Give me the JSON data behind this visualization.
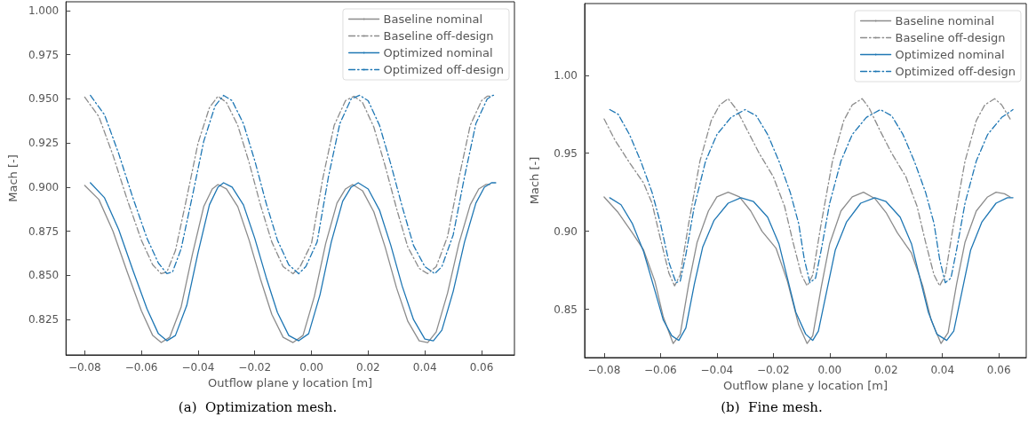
{
  "chart_data": [
    {
      "type": "line",
      "title": "(a)  Optimization mesh.",
      "xlabel": "Outflow plane y location [m]",
      "ylabel": "Mach [-]",
      "xlim": [
        -0.0866,
        0.0716
      ],
      "ylim": [
        0.805,
        1.005
      ],
      "xticks": [
        {
          "value": -0.08,
          "label": "−0.08"
        },
        {
          "value": -0.06,
          "label": "−0.06"
        },
        {
          "value": -0.04,
          "label": "−0.04"
        },
        {
          "value": -0.02,
          "label": "−0.02"
        },
        {
          "value": 0,
          "label": "0.00"
        },
        {
          "value": 0.02,
          "label": "0.02"
        },
        {
          "value": 0.04,
          "label": "0.04"
        },
        {
          "value": 0.06,
          "label": "0.06"
        }
      ],
      "yticks": [
        {
          "value": 0.825,
          "label": "0.825"
        },
        {
          "value": 0.85,
          "label": "0.850"
        },
        {
          "value": 0.875,
          "label": "0.875"
        },
        {
          "value": 0.9,
          "label": "0.900"
        },
        {
          "value": 0.925,
          "label": "0.925"
        },
        {
          "value": 0.95,
          "label": "0.950"
        },
        {
          "value": 0.975,
          "label": "0.975"
        },
        {
          "value": 1,
          "label": "1.000"
        }
      ],
      "grid": false,
      "legend": "top right",
      "marker": "none",
      "series": [
        {
          "name": "Baseline nominal",
          "color": "#8c8c8c",
          "line_style": "solid",
          "x": [
            -0.08,
            -0.075,
            -0.07,
            -0.065,
            -0.06,
            -0.056,
            -0.053,
            -0.05,
            -0.046,
            -0.042,
            -0.038,
            -0.035,
            -0.033,
            -0.03,
            -0.026,
            -0.022,
            -0.018,
            -0.014,
            -0.01,
            -0.0065,
            -0.003,
            0.001,
            0.005,
            0.009,
            0.012,
            0.0145,
            0.018,
            0.022,
            0.026,
            0.03,
            0.034,
            0.038,
            0.041,
            0.044,
            0.048,
            0.052,
            0.056,
            0.059,
            0.0615,
            0.063
          ],
          "values": [
            0.901,
            0.893,
            0.875,
            0.852,
            0.83,
            0.816,
            0.812,
            0.815,
            0.832,
            0.862,
            0.889,
            0.899,
            0.9015,
            0.899,
            0.889,
            0.87,
            0.848,
            0.828,
            0.815,
            0.812,
            0.816,
            0.838,
            0.868,
            0.891,
            0.899,
            0.9015,
            0.898,
            0.886,
            0.866,
            0.843,
            0.824,
            0.813,
            0.812,
            0.818,
            0.84,
            0.868,
            0.89,
            0.899,
            0.9015,
            0.9015
          ]
        },
        {
          "name": "Baseline off-design",
          "color": "#8c8c8c",
          "line_style": "dashdot",
          "x": [
            -0.08,
            -0.075,
            -0.07,
            -0.065,
            -0.06,
            -0.056,
            -0.053,
            -0.051,
            -0.048,
            -0.044,
            -0.04,
            -0.036,
            -0.033,
            -0.03,
            -0.026,
            -0.022,
            -0.018,
            -0.014,
            -0.01,
            -0.0065,
            -0.004,
            0,
            0.004,
            0.008,
            0.012,
            0.015,
            0.018,
            0.022,
            0.026,
            0.03,
            0.034,
            0.038,
            0.041,
            0.044,
            0.048,
            0.052,
            0.056,
            0.06,
            0.062,
            0.0635
          ],
          "values": [
            0.951,
            0.94,
            0.918,
            0.893,
            0.87,
            0.856,
            0.851,
            0.852,
            0.864,
            0.894,
            0.925,
            0.945,
            0.9515,
            0.948,
            0.935,
            0.914,
            0.89,
            0.869,
            0.855,
            0.851,
            0.855,
            0.868,
            0.905,
            0.935,
            0.949,
            0.9515,
            0.948,
            0.934,
            0.912,
            0.888,
            0.866,
            0.854,
            0.851,
            0.855,
            0.872,
            0.905,
            0.935,
            0.949,
            0.9515,
            0.9515
          ]
        },
        {
          "name": "Optimized nominal",
          "color": "#1f77b4",
          "line_style": "solid",
          "x": [
            -0.078,
            -0.073,
            -0.068,
            -0.063,
            -0.058,
            -0.054,
            -0.051,
            -0.048,
            -0.044,
            -0.04,
            -0.036,
            -0.033,
            -0.031,
            -0.028,
            -0.024,
            -0.02,
            -0.016,
            -0.012,
            -0.008,
            -0.0045,
            -0.001,
            0.003,
            0.007,
            0.011,
            0.014,
            0.0165,
            0.02,
            0.024,
            0.028,
            0.032,
            0.036,
            0.04,
            0.043,
            0.046,
            0.05,
            0.054,
            0.058,
            0.061,
            0.0635,
            0.065
          ],
          "values": [
            0.9025,
            0.894,
            0.876,
            0.853,
            0.831,
            0.817,
            0.813,
            0.816,
            0.833,
            0.863,
            0.89,
            0.9,
            0.9025,
            0.9,
            0.89,
            0.871,
            0.849,
            0.829,
            0.816,
            0.813,
            0.817,
            0.839,
            0.869,
            0.892,
            0.9,
            0.9025,
            0.899,
            0.887,
            0.867,
            0.844,
            0.825,
            0.814,
            0.813,
            0.819,
            0.841,
            0.869,
            0.891,
            0.9,
            0.9025,
            0.9025
          ]
        },
        {
          "name": "Optimized off-design",
          "color": "#1f77b4",
          "line_style": "dashdot",
          "x": [
            -0.078,
            -0.073,
            -0.068,
            -0.063,
            -0.058,
            -0.054,
            -0.051,
            -0.049,
            -0.046,
            -0.042,
            -0.038,
            -0.034,
            -0.031,
            -0.028,
            -0.024,
            -0.02,
            -0.016,
            -0.012,
            -0.008,
            -0.0045,
            -0.002,
            0.002,
            0.006,
            0.01,
            0.014,
            0.017,
            0.02,
            0.024,
            0.028,
            0.032,
            0.036,
            0.04,
            0.0435,
            0.046,
            0.05,
            0.054,
            0.058,
            0.062,
            0.064,
            0.065
          ],
          "values": [
            0.952,
            0.941,
            0.919,
            0.894,
            0.871,
            0.857,
            0.851,
            0.852,
            0.865,
            0.895,
            0.926,
            0.946,
            0.952,
            0.949,
            0.936,
            0.915,
            0.891,
            0.87,
            0.856,
            0.851,
            0.855,
            0.869,
            0.906,
            0.936,
            0.95,
            0.952,
            0.949,
            0.935,
            0.913,
            0.889,
            0.867,
            0.855,
            0.851,
            0.855,
            0.873,
            0.906,
            0.936,
            0.95,
            0.952,
            0.952
          ]
        }
      ]
    },
    {
      "type": "line",
      "title": "(b)  Fine mesh.",
      "xlabel": "Outflow plane y location [m]",
      "ylabel": "Mach [-]",
      "xlim": [
        -0.0869,
        0.0697
      ],
      "ylim": [
        0.819,
        1.046
      ],
      "xticks": [
        {
          "value": -0.08,
          "label": "−0.08"
        },
        {
          "value": -0.06,
          "label": "−0.06"
        },
        {
          "value": -0.04,
          "label": "−0.04"
        },
        {
          "value": -0.02,
          "label": "−0.02"
        },
        {
          "value": 0,
          "label": "0.00"
        },
        {
          "value": 0.02,
          "label": "0.02"
        },
        {
          "value": 0.04,
          "label": "0.04"
        },
        {
          "value": 0.06,
          "label": "0.06"
        }
      ],
      "yticks": [
        {
          "value": 0.85,
          "label": "0.85"
        },
        {
          "value": 0.9,
          "label": "0.90"
        },
        {
          "value": 0.95,
          "label": "0.95"
        },
        {
          "value": 1,
          "label": "1.00"
        }
      ],
      "grid": false,
      "legend": "top right",
      "marker": "none",
      "series": [
        {
          "name": "Baseline nominal",
          "color": "#8c8c8c",
          "line_style": "solid",
          "x": [
            -0.08,
            -0.075,
            -0.07,
            -0.066,
            -0.062,
            -0.059,
            -0.0555,
            -0.053,
            -0.05,
            -0.047,
            -0.043,
            -0.04,
            -0.036,
            -0.032,
            -0.028,
            -0.024,
            -0.019,
            -0.015,
            -0.011,
            -0.008,
            -0.006,
            -0.003,
            0,
            0.004,
            0.008,
            0.012,
            0.016,
            0.02,
            0.024,
            0.029,
            0.033,
            0.036,
            0.0395,
            0.042,
            0.045,
            0.048,
            0.052,
            0.056,
            0.059,
            0.062,
            0.064
          ],
          "values": [
            0.922,
            0.912,
            0.899,
            0.888,
            0.868,
            0.845,
            0.828,
            0.834,
            0.866,
            0.893,
            0.913,
            0.922,
            0.925,
            0.922,
            0.913,
            0.9,
            0.889,
            0.868,
            0.84,
            0.828,
            0.833,
            0.864,
            0.892,
            0.913,
            0.922,
            0.925,
            0.921,
            0.912,
            0.899,
            0.886,
            0.865,
            0.843,
            0.828,
            0.835,
            0.866,
            0.893,
            0.913,
            0.922,
            0.925,
            0.924,
            0.922
          ]
        },
        {
          "name": "Baseline off-design",
          "color": "#8c8c8c",
          "line_style": "dashdot",
          "x": [
            -0.08,
            -0.076,
            -0.071,
            -0.066,
            -0.063,
            -0.06,
            -0.057,
            -0.055,
            -0.053,
            -0.05,
            -0.046,
            -0.042,
            -0.039,
            -0.036,
            -0.033,
            -0.029,
            -0.025,
            -0.02,
            -0.016,
            -0.013,
            -0.01,
            -0.008,
            -0.006,
            -0.003,
            0.001,
            0.005,
            0.008,
            0.0115,
            0.014,
            0.018,
            0.022,
            0.027,
            0.031,
            0.034,
            0.037,
            0.039,
            0.041,
            0.044,
            0.048,
            0.052,
            0.055,
            0.0585,
            0.061,
            0.064
          ],
          "values": [
            0.972,
            0.958,
            0.944,
            0.931,
            0.918,
            0.895,
            0.873,
            0.865,
            0.872,
            0.905,
            0.945,
            0.971,
            0.981,
            0.985,
            0.978,
            0.964,
            0.95,
            0.935,
            0.916,
            0.893,
            0.872,
            0.865,
            0.872,
            0.905,
            0.945,
            0.971,
            0.981,
            0.985,
            0.979,
            0.964,
            0.95,
            0.935,
            0.916,
            0.893,
            0.872,
            0.865,
            0.872,
            0.905,
            0.945,
            0.971,
            0.981,
            0.985,
            0.981,
            0.972
          ]
        },
        {
          "name": "Optimized nominal",
          "color": "#1f77b4",
          "line_style": "solid",
          "x": [
            -0.078,
            -0.074,
            -0.07,
            -0.066,
            -0.062,
            -0.059,
            -0.056,
            -0.0535,
            -0.051,
            -0.048,
            -0.045,
            -0.041,
            -0.036,
            -0.0315,
            -0.027,
            -0.022,
            -0.018,
            -0.015,
            -0.012,
            -0.0085,
            -0.006,
            -0.004,
            -0.001,
            0.002,
            0.006,
            0.011,
            0.016,
            0.02,
            0.025,
            0.029,
            0.032,
            0.035,
            0.038,
            0.0415,
            0.044,
            0.047,
            0.05,
            0.054,
            0.059,
            0.063,
            0.065
          ],
          "values": [
            0.9215,
            0.917,
            0.905,
            0.887,
            0.862,
            0.843,
            0.833,
            0.83,
            0.838,
            0.866,
            0.89,
            0.907,
            0.918,
            0.9215,
            0.919,
            0.909,
            0.892,
            0.87,
            0.848,
            0.834,
            0.83,
            0.836,
            0.862,
            0.888,
            0.906,
            0.918,
            0.9215,
            0.919,
            0.909,
            0.892,
            0.87,
            0.848,
            0.834,
            0.83,
            0.836,
            0.862,
            0.888,
            0.906,
            0.918,
            0.9215,
            0.9215
          ]
        },
        {
          "name": "Optimized off-design",
          "color": "#1f77b4",
          "line_style": "dashdot",
          "x": [
            -0.078,
            -0.075,
            -0.071,
            -0.067,
            -0.063,
            -0.06,
            -0.057,
            -0.0545,
            -0.053,
            -0.051,
            -0.048,
            -0.044,
            -0.04,
            -0.035,
            -0.03,
            -0.026,
            -0.022,
            -0.018,
            -0.014,
            -0.011,
            -0.009,
            -0.007,
            -0.005,
            -0.003,
            0,
            0.004,
            0.008,
            0.013,
            0.018,
            0.022,
            0.026,
            0.03,
            0.034,
            0.037,
            0.039,
            0.041,
            0.043,
            0.045,
            0.048,
            0.052,
            0.056,
            0.061,
            0.065
          ],
          "values": [
            0.978,
            0.975,
            0.962,
            0.945,
            0.925,
            0.905,
            0.88,
            0.867,
            0.868,
            0.885,
            0.916,
            0.945,
            0.962,
            0.973,
            0.978,
            0.974,
            0.962,
            0.945,
            0.925,
            0.905,
            0.882,
            0.867,
            0.87,
            0.888,
            0.918,
            0.945,
            0.962,
            0.973,
            0.978,
            0.974,
            0.962,
            0.945,
            0.925,
            0.905,
            0.882,
            0.867,
            0.87,
            0.888,
            0.918,
            0.945,
            0.962,
            0.973,
            0.978
          ]
        }
      ]
    }
  ]
}
